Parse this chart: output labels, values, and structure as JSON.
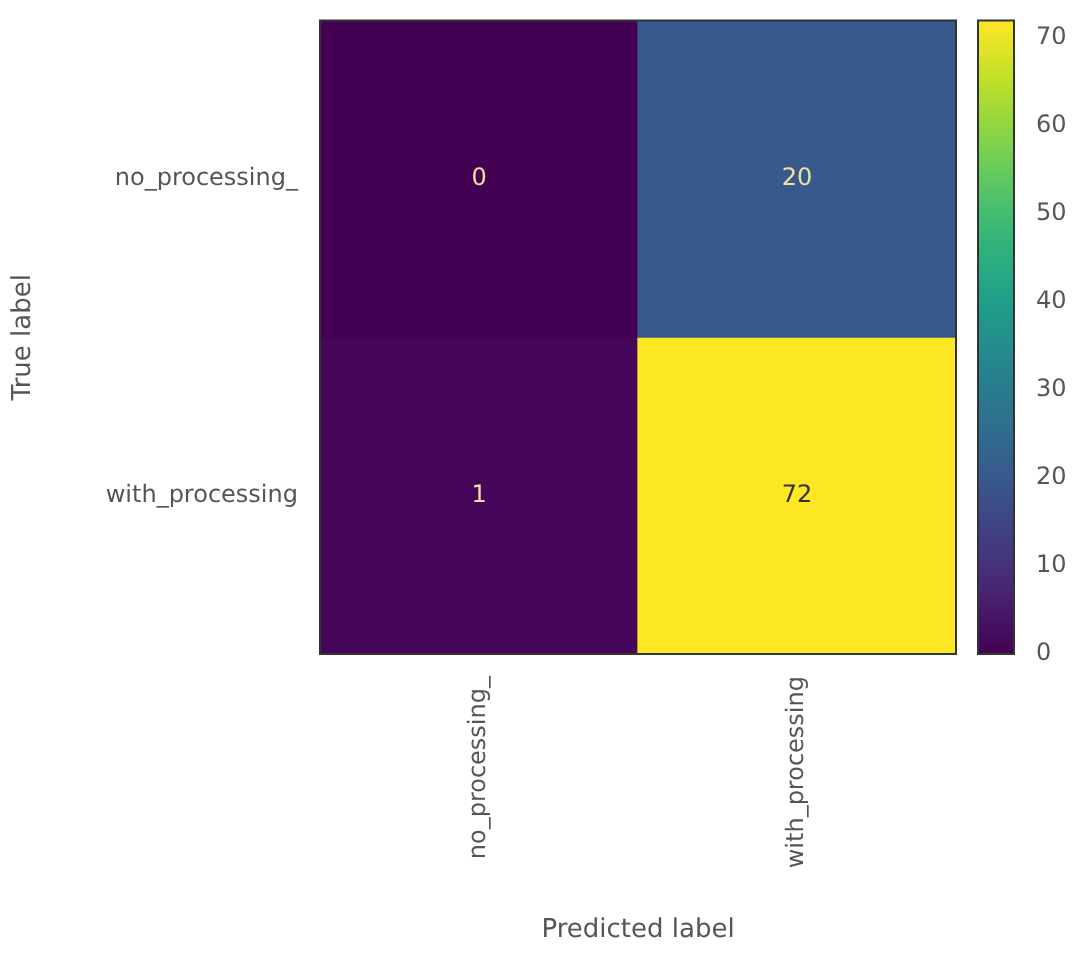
{
  "chart_data": {
    "type": "heatmap",
    "xlabel": "Predicted label",
    "ylabel": "True label",
    "categories": [
      "no_processing_",
      "with_processing"
    ],
    "y_categories": [
      "no_processing_",
      "with_processing"
    ],
    "cells": [
      [
        0,
        20
      ],
      [
        1,
        72
      ]
    ],
    "data_labels": true,
    "clim": [
      0,
      72
    ],
    "cticks": [
      0,
      10,
      20,
      30,
      40,
      50,
      60,
      70
    ]
  }
}
